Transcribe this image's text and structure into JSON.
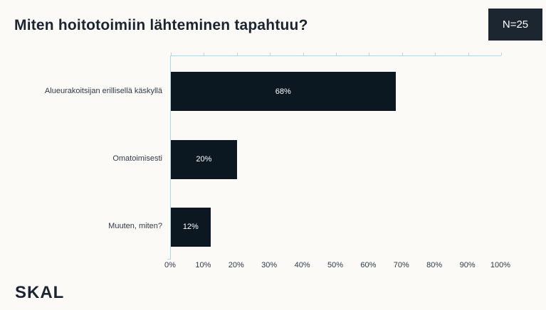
{
  "slide": {
    "title": "Miten hoitotoimiin lähteminen tapahtuu?",
    "sample_size_badge": "N=25",
    "logo_text": "SKAL"
  },
  "colors": {
    "background": "#fbfaf7",
    "bar": "#0b1822",
    "badge_bg": "#1b2631",
    "badge_text": "#ffffff",
    "title_text": "#1b2531",
    "label_text": "#2e3b48",
    "bar_value_text": "#ffffff",
    "axis_line": "#a9d9ec"
  },
  "chart_data": {
    "type": "bar",
    "orientation": "horizontal",
    "title": "Miten hoitotoimiin lähteminen tapahtuu?",
    "categories": [
      "Alueurakoitsijan erillisellä käskyllä",
      "Omatoimisesti",
      "Muuten, miten?"
    ],
    "values": [
      68,
      20,
      12
    ],
    "value_labels": [
      "68%",
      "20%",
      "12%"
    ],
    "xlabel": "",
    "ylabel": "",
    "xlim": [
      0,
      100
    ],
    "x_tick_labels": [
      "0%",
      "10%",
      "20%",
      "30%",
      "40%",
      "50%",
      "60%",
      "70%",
      "80%",
      "90%",
      "100%"
    ],
    "grid": false,
    "legend": false
  }
}
